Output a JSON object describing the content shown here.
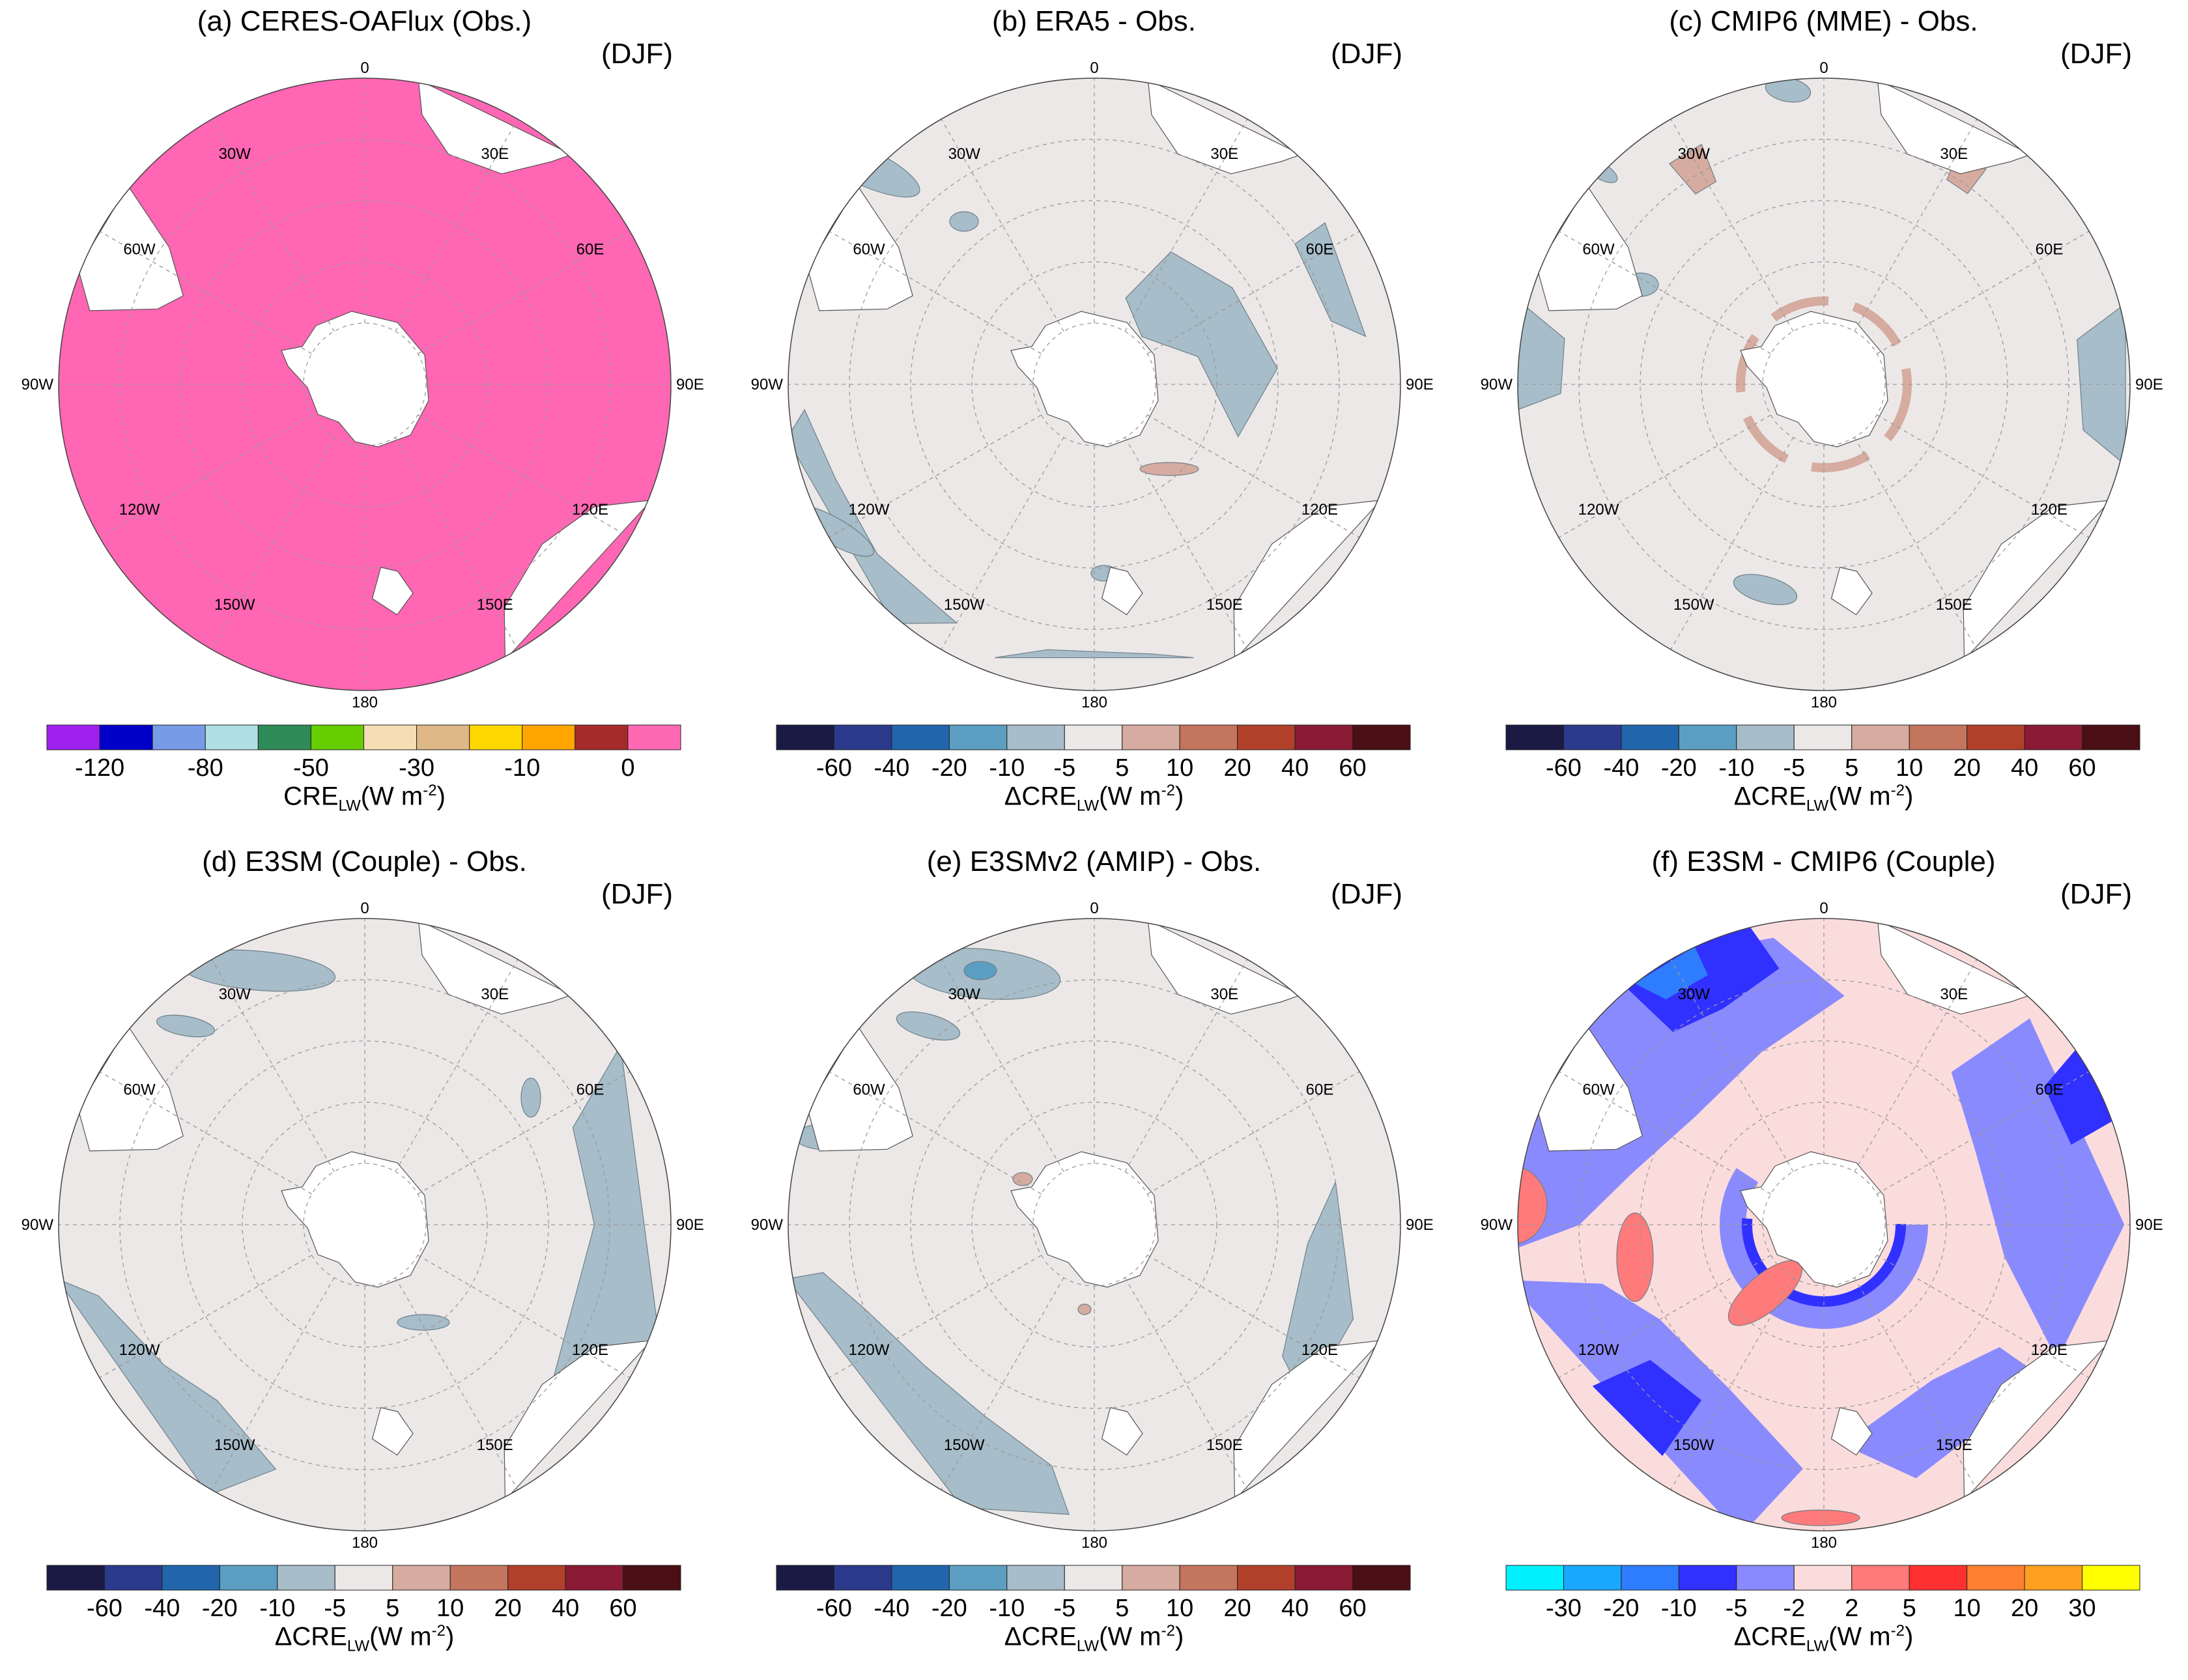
{
  "colors": {
    "panel_a_fill": "#ff66b3",
    "land": "#ffffff",
    "neutral": "#ece8e8",
    "blue_light": "#a7bdc9",
    "blue_mid": "#5b9ec2",
    "tan": "#d6aba0",
    "f_background": "#fbdcdc"
  },
  "palettes": {
    "cre": [
      "#a020f0",
      "#0000c8",
      "#789be8",
      "#b0e0e6",
      "#2e8b57",
      "#66cd00",
      "#f5deb3",
      "#deb887",
      "#ffd700",
      "#ffa500",
      "#a52a2a",
      "#ff69b4"
    ],
    "dcre": [
      "#1a1a44",
      "#2b3a8c",
      "#2166ac",
      "#5b9ec2",
      "#a7bdc9",
      "#ece8e8",
      "#d6aba0",
      "#c4755d",
      "#b0402a",
      "#8b1a35",
      "#4a0f14"
    ],
    "f": [
      "#00f0ff",
      "#1aa8ff",
      "#2f7dff",
      "#3030ff",
      "#8a8aff",
      "#fbdcdc",
      "#ff7a7a",
      "#ff3030",
      "#ff8030",
      "#ffa020",
      "#ffff00"
    ]
  },
  "map_labels": {
    "top": "0",
    "bottom": "180",
    "left_upper": "30W",
    "left_mid_upper": "60W",
    "left": "90W",
    "left_mid_lower": "120W",
    "left_lower": "150W",
    "right_upper": "30E",
    "right_mid_upper": "60E",
    "right": "90E",
    "right_mid_lower": "120E",
    "right_lower": "150E"
  },
  "panels": [
    {
      "id": "a",
      "title": "(a) CERES-OAFlux (Obs.)",
      "season": "(DJF)",
      "palette": "cre",
      "ticks": [
        "-120",
        "-80",
        "-50",
        "-30",
        "-10",
        "0"
      ],
      "cbar_prefix": "",
      "cbar_var": "CRE",
      "cbar_sub": "LW",
      "cbar_unit": "(W m",
      "cbar_exp": "-2",
      "cbar_close": ")"
    },
    {
      "id": "b",
      "title": "(b) ERA5 - Obs.",
      "season": "(DJF)",
      "palette": "dcre",
      "ticks": [
        "-60",
        "-40",
        "-20",
        "-10",
        "-5",
        "5",
        "10",
        "20",
        "40",
        "60"
      ],
      "cbar_prefix": "Δ",
      "cbar_var": "CRE",
      "cbar_sub": "LW",
      "cbar_unit": "(W m",
      "cbar_exp": "-2",
      "cbar_close": ")"
    },
    {
      "id": "c",
      "title": "(c) CMIP6 (MME) - Obs.",
      "season": "(DJF)",
      "palette": "dcre",
      "ticks": [
        "-60",
        "-40",
        "-20",
        "-10",
        "-5",
        "5",
        "10",
        "20",
        "40",
        "60"
      ],
      "cbar_prefix": "Δ",
      "cbar_var": "CRE",
      "cbar_sub": "LW",
      "cbar_unit": "(W m",
      "cbar_exp": "-2",
      "cbar_close": ")"
    },
    {
      "id": "d",
      "title": "(d) E3SM (Couple) - Obs.",
      "season": "(DJF)",
      "palette": "dcre",
      "ticks": [
        "-60",
        "-40",
        "-20",
        "-10",
        "-5",
        "5",
        "10",
        "20",
        "40",
        "60"
      ],
      "cbar_prefix": "Δ",
      "cbar_var": "CRE",
      "cbar_sub": "LW",
      "cbar_unit": "(W m",
      "cbar_exp": "-2",
      "cbar_close": ")"
    },
    {
      "id": "e",
      "title": "(e) E3SMv2 (AMIP) - Obs.",
      "season": "(DJF)",
      "palette": "dcre",
      "ticks": [
        "-60",
        "-40",
        "-20",
        "-10",
        "-5",
        "5",
        "10",
        "20",
        "40",
        "60"
      ],
      "cbar_prefix": "Δ",
      "cbar_var": "CRE",
      "cbar_sub": "LW",
      "cbar_unit": "(W m",
      "cbar_exp": "-2",
      "cbar_close": ")"
    },
    {
      "id": "f",
      "title": "(f) E3SM - CMIP6 (Couple)",
      "season": "(DJF)",
      "palette": "f",
      "ticks": [
        "-30",
        "-20",
        "-10",
        "-5",
        "-2",
        "2",
        "5",
        "10",
        "20",
        "30"
      ],
      "cbar_prefix": "Δ",
      "cbar_var": "CRE",
      "cbar_sub": "LW",
      "cbar_unit": "(W m",
      "cbar_exp": "-2",
      "cbar_close": ")"
    }
  ]
}
